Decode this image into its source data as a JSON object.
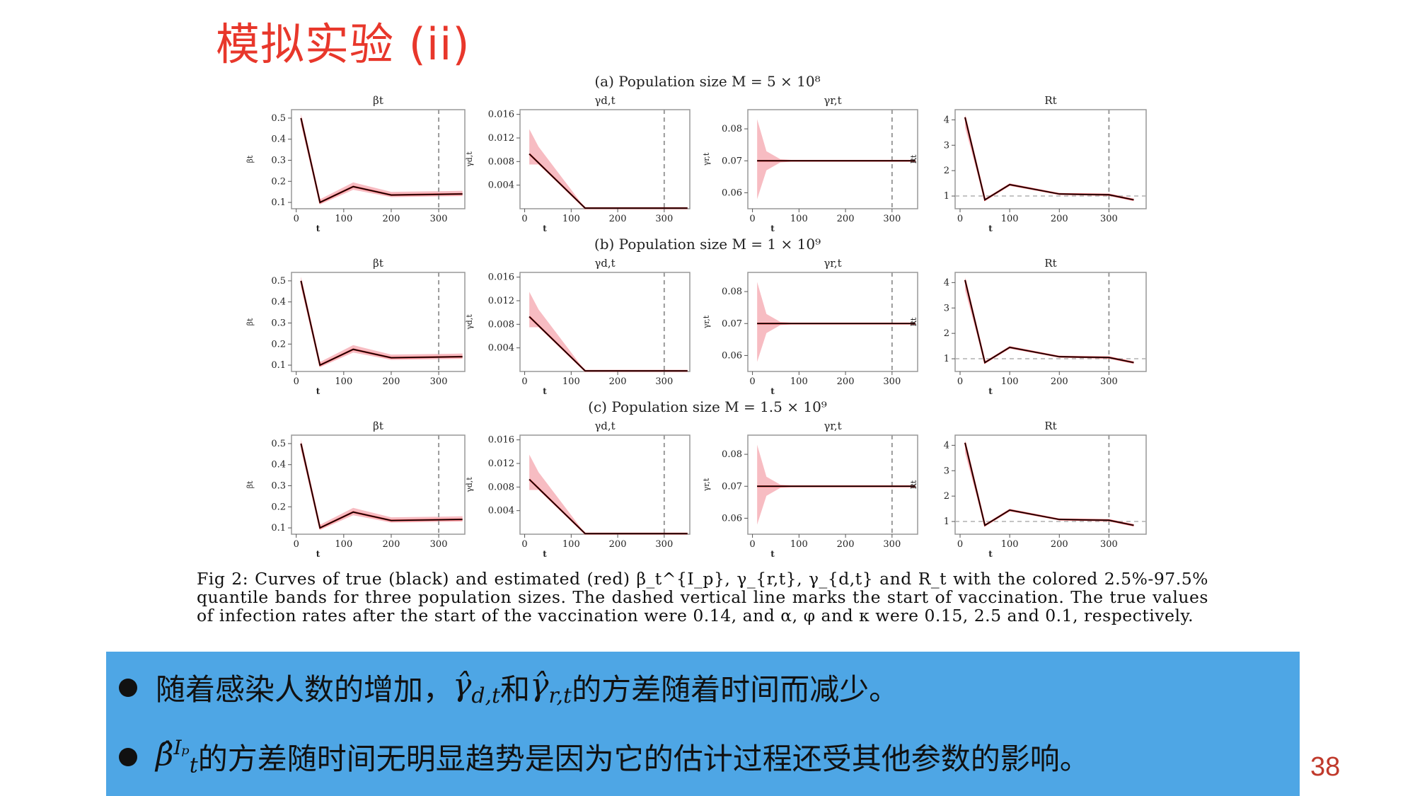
{
  "slide": {
    "title": "模拟实验 (ii)",
    "page_number": "38"
  },
  "figure": {
    "rows": [
      {
        "label": "(a) Population size M = 5 × 10⁸"
      },
      {
        "label": "(b) Population size M = 1 × 10⁹"
      },
      {
        "label": "(c) Population size M = 1.5 × 10⁹"
      }
    ],
    "caption": "Fig 2: Curves of true (black) and estimated (red) β_t^{I_p}, γ_{r,t}, γ_{d,t} and R_t with the colored 2.5%-97.5% quantile bands for three population sizes. The dashed vertical line marks the start of vaccination. The true values of infection rates after the start of the vaccination were 0.14, and α, φ and κ were 0.15, 2.5 and 0.1, respectively."
  },
  "colors": {
    "title": "#e8372b",
    "true_curve": "#000000",
    "estimate_curve": "#d62728",
    "band": "#f4a6ad",
    "bullet_bg": "#4ea6e5"
  },
  "chart_data": [
    {
      "type": "line",
      "title": "βt",
      "xlabel": "t",
      "ylabel": "βt",
      "xticks": [
        0,
        100,
        200,
        300
      ],
      "yticks": [
        0.1,
        0.2,
        0.3,
        0.4,
        0.5
      ],
      "xlim": [
        -10,
        355
      ],
      "ylim": [
        0.07,
        0.54
      ],
      "vline": 300,
      "series": [
        {
          "name": "true",
          "x": [
            10,
            50,
            120,
            200,
            350
          ],
          "y": [
            0.5,
            0.1,
            0.175,
            0.135,
            0.14
          ]
        }
      ],
      "band": {
        "x": [
          10,
          50,
          120,
          200,
          350
        ],
        "lower": [
          0.47,
          0.09,
          0.16,
          0.125,
          0.13
        ],
        "upper": [
          0.52,
          0.115,
          0.195,
          0.15,
          0.155
        ]
      }
    },
    {
      "type": "line",
      "title": "γd,t",
      "xlabel": "t",
      "ylabel": "γd,t",
      "xticks": [
        0,
        100,
        200,
        300
      ],
      "yticks": [
        0.004,
        0.008,
        0.012,
        0.016
      ],
      "xlim": [
        -10,
        355
      ],
      "ylim": [
        0.0,
        0.0168
      ],
      "vline": 300,
      "series": [
        {
          "name": "true",
          "x": [
            10,
            130,
            350
          ],
          "y": [
            0.0093,
            0.0001,
            0.0001
          ]
        }
      ],
      "band": {
        "x": [
          10,
          30,
          130,
          350
        ],
        "lower": [
          0.0075,
          0.0075,
          0.0001,
          0.0001
        ],
        "upper": [
          0.0135,
          0.0105,
          0.0001,
          0.0001
        ]
      }
    },
    {
      "type": "line",
      "title": "γr,t",
      "xlabel": "t",
      "ylabel": "γr,t",
      "xticks": [
        0,
        100,
        200,
        300
      ],
      "yticks": [
        0.06,
        0.07,
        0.08
      ],
      "xlim": [
        -10,
        355
      ],
      "ylim": [
        0.055,
        0.086
      ],
      "vline": 300,
      "series": [
        {
          "name": "true",
          "x": [
            10,
            350
          ],
          "y": [
            0.07,
            0.07
          ]
        }
      ],
      "band": {
        "x": [
          10,
          30,
          60,
          100,
          350
        ],
        "lower": [
          0.058,
          0.067,
          0.0695,
          0.0699,
          0.07
        ],
        "upper": [
          0.083,
          0.073,
          0.0705,
          0.0701,
          0.07
        ]
      }
    },
    {
      "type": "line",
      "title": "Rt",
      "xlabel": "t",
      "ylabel": "Rt",
      "xticks": [
        0,
        100,
        200,
        300
      ],
      "yticks": [
        1,
        2,
        3,
        4
      ],
      "xlim": [
        -10,
        375
      ],
      "ylim": [
        0.5,
        4.4
      ],
      "vline": 300,
      "hline": 1,
      "series": [
        {
          "name": "true",
          "x": [
            10,
            50,
            100,
            200,
            300,
            350
          ],
          "y": [
            4.1,
            0.85,
            1.45,
            1.08,
            1.05,
            0.85
          ]
        }
      ],
      "band": {
        "x": [
          10,
          50,
          100,
          200,
          300,
          350
        ],
        "lower": [
          3.7,
          0.8,
          1.4,
          1.05,
          1.0,
          0.8
        ],
        "upper": [
          4.2,
          0.9,
          1.5,
          1.12,
          1.1,
          0.9
        ]
      }
    }
  ],
  "bullets": [
    {
      "pre": "随着感染人数的增加，",
      "math1": "γ̂",
      "sub1": "d,t",
      "mid": "和",
      "math2": "γ̂",
      "sub2": "r,t",
      "post": "的方差随着时间而减少。"
    },
    {
      "math1": "β̂",
      "sup1": "Iₚ",
      "sub1": "t",
      "post": "的方差随时间无明显趋势是因为它的估计过程还受其他参数的影响。"
    }
  ]
}
